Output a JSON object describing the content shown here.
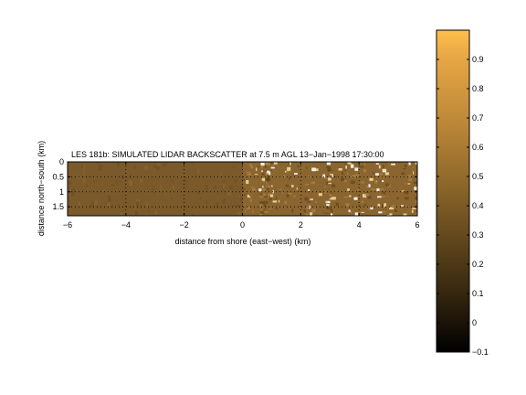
{
  "chart_data": {
    "type": "heatmap",
    "title": "LES 181b: SIMULATED LIDAR BACKSCATTER at 7.5 m AGL 13−Jan−1998 17:30:00",
    "xlabel": "distance from shore (east−west) (km)",
    "ylabel": "distance north−south (km)",
    "xlim": [
      -6,
      6
    ],
    "ylim": [
      0,
      1.8
    ],
    "y_reversed": true,
    "xticks": [
      -6,
      -4,
      -2,
      0,
      2,
      4,
      6
    ],
    "xtick_labels": [
      "−6",
      "−4",
      "−2",
      "0",
      "2",
      "4",
      "6"
    ],
    "yticks": [
      0,
      0.5,
      1,
      1.5
    ],
    "ytick_labels": [
      "0",
      "0.5",
      "1",
      "1.5"
    ],
    "grid": true,
    "colorbar": {
      "range": [
        -0.1,
        1.0
      ],
      "ticks": [
        -0.1,
        0,
        0.1,
        0.2,
        0.3,
        0.4,
        0.5,
        0.6,
        0.7,
        0.8,
        0.9
      ],
      "tick_labels": [
        "−0.1",
        "0",
        "0.1",
        "0.2",
        "0.3",
        "0.4",
        "0.5",
        "0.6",
        "0.7",
        "0.8",
        "0.9"
      ],
      "colors": [
        "#000000",
        "#3a2a10",
        "#7a5a24",
        "#b98638",
        "#e8a845",
        "#ffbf4a"
      ]
    },
    "field_description": {
      "offshore_mean": 0.45,
      "onshore_mean": 0.55,
      "onshore_max": 1.0,
      "transition_x": 0
    }
  }
}
